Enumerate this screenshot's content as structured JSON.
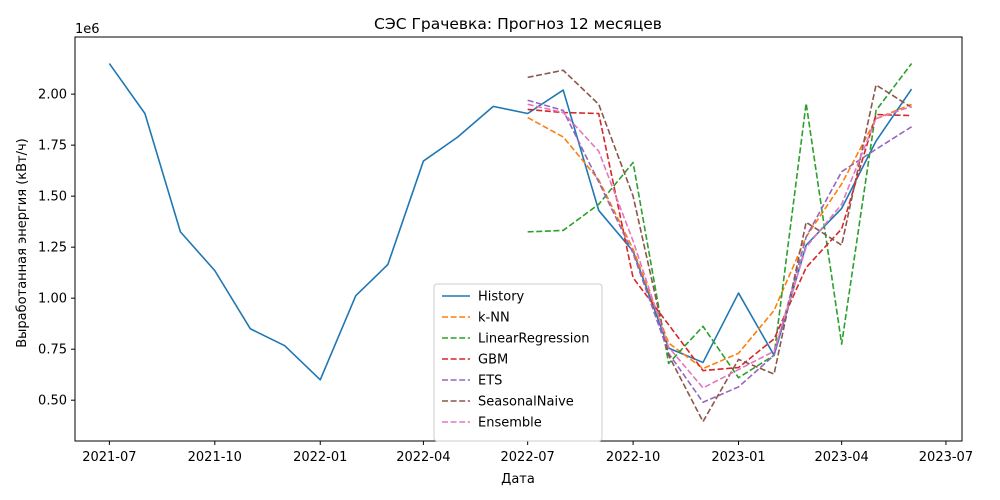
{
  "chart_data": {
    "type": "line",
    "title": "СЭС Грачевка: Прогноз 12 месяцев",
    "xlabel": "Дата",
    "ylabel": "Выработанная энергия (кВт/ч)",
    "y_multiplier_label": "1e6",
    "grid": false,
    "legend_position": "lower-center",
    "xlim": [
      "2021-06-01",
      "2023-07-15"
    ],
    "ylim": [
      0.3,
      2.28
    ],
    "x_ticks": [
      {
        "date": "2021-07-01",
        "label": "2021-07"
      },
      {
        "date": "2021-10-01",
        "label": "2021-10"
      },
      {
        "date": "2022-01-01",
        "label": "2022-01"
      },
      {
        "date": "2022-04-01",
        "label": "2022-04"
      },
      {
        "date": "2022-07-01",
        "label": "2022-07"
      },
      {
        "date": "2022-10-01",
        "label": "2022-10"
      },
      {
        "date": "2023-01-01",
        "label": "2023-01"
      },
      {
        "date": "2023-04-01",
        "label": "2023-04"
      },
      {
        "date": "2023-07-01",
        "label": "2023-07"
      }
    ],
    "y_ticks": [
      {
        "value": 0.5,
        "label": "0.50"
      },
      {
        "value": 0.75,
        "label": "0.75"
      },
      {
        "value": 1.0,
        "label": "1.00"
      },
      {
        "value": 1.25,
        "label": "1.25"
      },
      {
        "value": 1.5,
        "label": "1.50"
      },
      {
        "value": 1.75,
        "label": "1.75"
      },
      {
        "value": 2.0,
        "label": "2.00"
      }
    ],
    "series": [
      {
        "name": "History",
        "color": "#1f77b4",
        "dash": "solid",
        "x": [
          "2021-07-01",
          "2021-08-01",
          "2021-09-01",
          "2021-10-01",
          "2021-11-01",
          "2021-12-01",
          "2022-01-01",
          "2022-02-01",
          "2022-03-01",
          "2022-04-01",
          "2022-05-01",
          "2022-06-01",
          "2022-07-01",
          "2022-08-01",
          "2022-09-01",
          "2022-10-01",
          "2022-11-01",
          "2022-12-01",
          "2023-01-01",
          "2023-02-01",
          "2023-03-01",
          "2023-04-01",
          "2023-05-01",
          "2023-06-01"
        ],
        "y": [
          2.15,
          1.905,
          1.325,
          1.135,
          0.85,
          0.767,
          0.6,
          1.012,
          1.165,
          1.672,
          1.79,
          1.94,
          1.905,
          2.02,
          1.43,
          1.23,
          0.755,
          0.685,
          1.025,
          0.72,
          1.26,
          1.44,
          1.77,
          2.025
        ]
      },
      {
        "name": "k-NN",
        "color": "#ff7f0e",
        "dash": "dashed",
        "x": [
          "2022-07-01",
          "2022-08-01",
          "2022-09-01",
          "2022-10-01",
          "2022-11-01",
          "2022-12-01",
          "2023-01-01",
          "2023-02-01",
          "2023-03-01",
          "2023-04-01",
          "2023-05-01",
          "2023-06-01"
        ],
        "y": [
          1.885,
          1.79,
          1.58,
          1.24,
          0.78,
          0.655,
          0.73,
          0.94,
          1.3,
          1.56,
          1.88,
          1.95
        ]
      },
      {
        "name": "LinearRegression",
        "color": "#2ca02c",
        "dash": "dashed",
        "x": [
          "2022-07-01",
          "2022-08-01",
          "2022-09-01",
          "2022-10-01",
          "2022-11-01",
          "2022-12-01",
          "2023-01-01",
          "2023-02-01",
          "2023-03-01",
          "2023-04-01",
          "2023-05-01",
          "2023-06-01"
        ],
        "y": [
          1.325,
          1.332,
          1.46,
          1.665,
          0.68,
          0.862,
          0.61,
          0.72,
          1.955,
          0.775,
          1.92,
          2.15
        ]
      },
      {
        "name": "GBM",
        "color": "#d62728",
        "dash": "dashed",
        "x": [
          "2022-07-01",
          "2022-08-01",
          "2022-09-01",
          "2022-10-01",
          "2022-11-01",
          "2022-12-01",
          "2023-01-01",
          "2023-02-01",
          "2023-03-01",
          "2023-04-01",
          "2023-05-01",
          "2023-06-01"
        ],
        "y": [
          1.925,
          1.91,
          1.905,
          1.1,
          0.87,
          0.645,
          0.66,
          0.8,
          1.15,
          1.34,
          1.9,
          1.895
        ]
      },
      {
        "name": "ETS",
        "color": "#9467bd",
        "dash": "dashed",
        "x": [
          "2022-07-01",
          "2022-08-01",
          "2022-09-01",
          "2022-10-01",
          "2022-11-01",
          "2022-12-01",
          "2023-01-01",
          "2023-02-01",
          "2023-03-01",
          "2023-04-01",
          "2023-05-01",
          "2023-06-01"
        ],
        "y": [
          1.97,
          1.92,
          1.57,
          1.22,
          0.73,
          0.49,
          0.565,
          0.72,
          1.3,
          1.62,
          1.73,
          1.84
        ]
      },
      {
        "name": "SeasonalNaive",
        "color": "#8c564b",
        "dash": "dashed",
        "x": [
          "2022-07-01",
          "2022-08-01",
          "2022-09-01",
          "2022-10-01",
          "2022-11-01",
          "2022-12-01",
          "2023-01-01",
          "2023-02-01",
          "2023-03-01",
          "2023-04-01",
          "2023-05-01",
          "2023-06-01"
        ],
        "y": [
          2.082,
          2.117,
          1.95,
          1.5,
          0.72,
          0.395,
          0.7,
          0.628,
          1.372,
          1.26,
          2.045,
          1.935
        ]
      },
      {
        "name": "Ensemble",
        "color": "#e377c2",
        "dash": "dashed",
        "x": [
          "2022-07-01",
          "2022-08-01",
          "2022-09-01",
          "2022-10-01",
          "2022-11-01",
          "2022-12-01",
          "2023-01-01",
          "2023-02-01",
          "2023-03-01",
          "2023-04-01",
          "2023-05-01",
          "2023-06-01"
        ],
        "y": [
          1.95,
          1.91,
          1.72,
          1.28,
          0.76,
          0.56,
          0.65,
          0.74,
          1.25,
          1.46,
          1.88,
          1.94
        ]
      }
    ]
  }
}
